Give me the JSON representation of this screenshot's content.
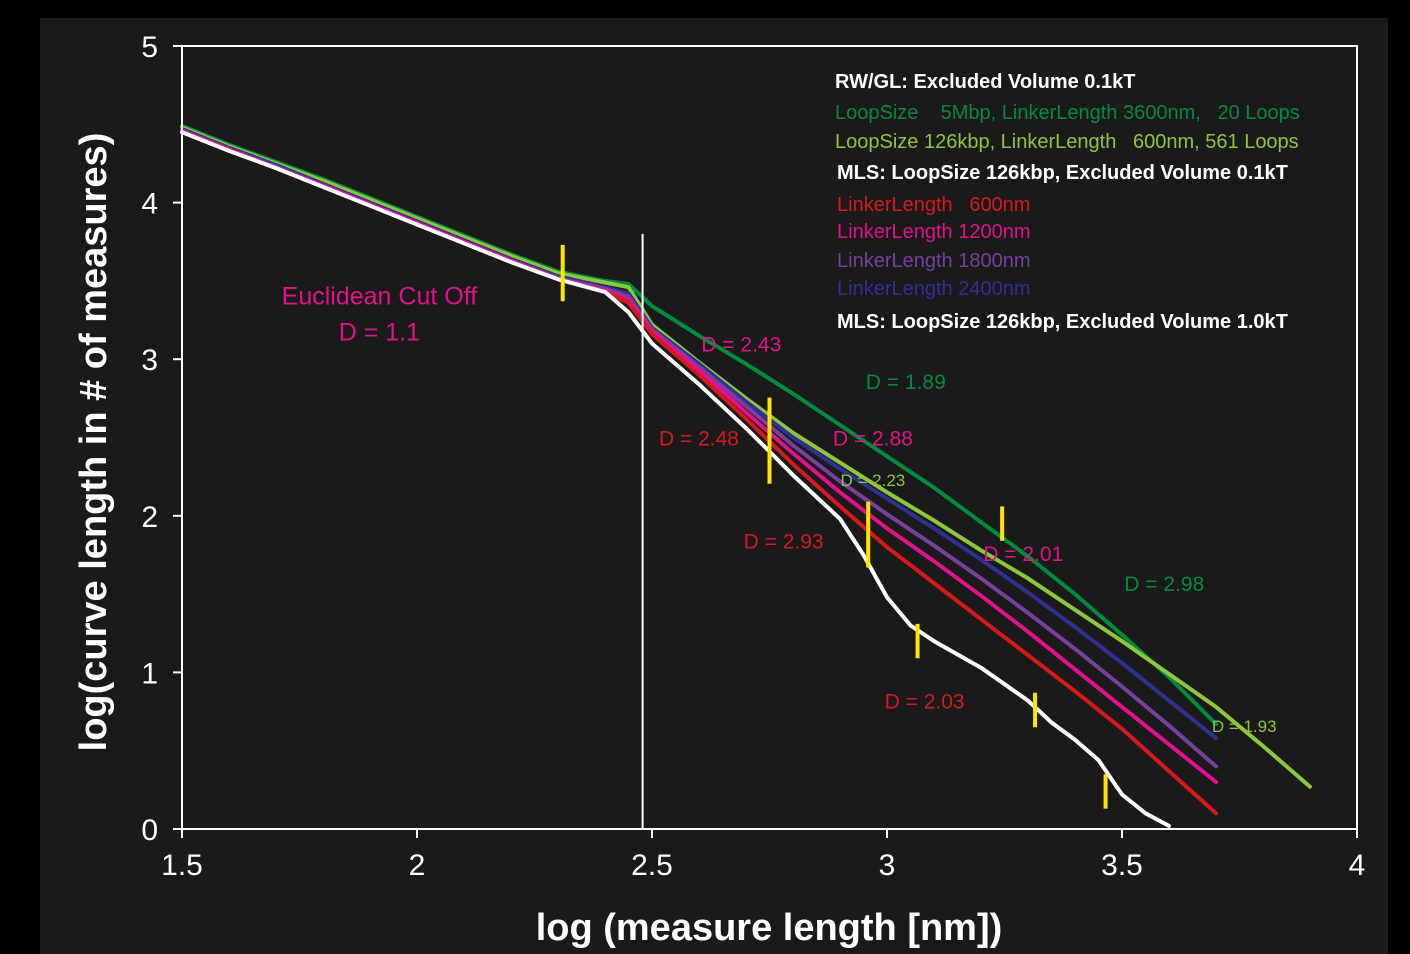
{
  "chart_data": {
    "type": "line",
    "xlabel": "log (measure length [nm])",
    "ylabel": "log(curve length in # of measures)",
    "xlim": [
      1.5,
      4
    ],
    "ylim": [
      0,
      5
    ],
    "xticks": [
      "1.5",
      "2",
      "2.5",
      "3",
      "3.5",
      "4"
    ],
    "yticks": [
      "0",
      "1",
      "2",
      "3",
      "4",
      "5"
    ],
    "grid": false,
    "legend_position": "top-right",
    "legend": {
      "group1_title": "RW/GL: Excluded Volume 0.1kT",
      "group1_items": [
        {
          "text": "LoopSize    5Mbp, LinkerLength 3600nm,   20 Loops",
          "color": "#008c3c"
        },
        {
          "text": "LoopSize 126kbp, LinkerLength   600nm, 561 Loops",
          "color": "#8cc63f"
        }
      ],
      "group2_title": "MLS: LoopSize 126kbp, Excluded Volume 0.1kT",
      "group2_items": [
        {
          "text": "LinkerLength   600nm",
          "color": "#d7191c"
        },
        {
          "text": "LinkerLength 1200nm",
          "color": "#e0128c"
        },
        {
          "text": "LinkerLength 1800nm",
          "color": "#7a3f9d"
        },
        {
          "text": "LinkerLength 2400nm",
          "color": "#2e3192"
        }
      ],
      "group3_title": "MLS: LoopSize 126kbp, Excluded Volume 1.0kT"
    },
    "series": [
      {
        "color": "#008c3c",
        "x": [
          1.5,
          1.6,
          1.7,
          1.8,
          1.9,
          2.0,
          2.1,
          2.2,
          2.3,
          2.4,
          2.45,
          2.5,
          2.6,
          2.7,
          2.8,
          2.9,
          3.0,
          3.1,
          3.2,
          3.3,
          3.4,
          3.5,
          3.6,
          3.7
        ],
        "y": [
          4.49,
          4.37,
          4.26,
          4.15,
          4.03,
          3.91,
          3.79,
          3.67,
          3.56,
          3.5,
          3.48,
          3.34,
          3.15,
          2.97,
          2.78,
          2.58,
          2.38,
          2.18,
          1.96,
          1.74,
          1.5,
          1.24,
          0.97,
          0.67
        ]
      },
      {
        "color": "#8cc63f",
        "x": [
          1.5,
          1.6,
          1.7,
          1.8,
          1.9,
          2.0,
          2.1,
          2.2,
          2.3,
          2.4,
          2.45,
          2.5,
          2.6,
          2.7,
          2.8,
          2.9,
          3.0,
          3.1,
          3.2,
          3.3,
          3.4,
          3.5,
          3.6,
          3.7,
          3.8,
          3.9
        ],
        "y": [
          4.48,
          4.36,
          4.25,
          4.14,
          4.02,
          3.9,
          3.78,
          3.66,
          3.55,
          3.49,
          3.46,
          3.22,
          2.98,
          2.75,
          2.53,
          2.34,
          2.15,
          1.97,
          1.78,
          1.6,
          1.4,
          1.2,
          0.99,
          0.78,
          0.53,
          0.27
        ]
      },
      {
        "color": "#2e3192",
        "x": [
          1.5,
          1.6,
          1.7,
          1.8,
          1.9,
          2.0,
          2.1,
          2.2,
          2.3,
          2.4,
          2.45,
          2.5,
          2.6,
          2.7,
          2.8,
          2.9,
          3.0,
          3.1,
          3.2,
          3.3,
          3.4,
          3.5,
          3.6,
          3.7
        ],
        "y": [
          4.47,
          4.35,
          4.24,
          4.12,
          4.0,
          3.88,
          3.76,
          3.64,
          3.53,
          3.46,
          3.42,
          3.2,
          2.97,
          2.73,
          2.5,
          2.3,
          2.11,
          1.92,
          1.72,
          1.51,
          1.29,
          1.06,
          0.82,
          0.58
        ]
      },
      {
        "color": "#7a3f9d",
        "x": [
          1.5,
          1.6,
          1.7,
          1.8,
          1.9,
          2.0,
          2.1,
          2.2,
          2.3,
          2.4,
          2.45,
          2.5,
          2.6,
          2.7,
          2.8,
          2.9,
          3.0,
          3.1,
          3.2,
          3.3,
          3.4,
          3.5,
          3.6,
          3.7
        ],
        "y": [
          4.46,
          4.34,
          4.23,
          4.11,
          3.99,
          3.87,
          3.75,
          3.63,
          3.52,
          3.45,
          3.4,
          3.19,
          2.95,
          2.7,
          2.45,
          2.22,
          2.01,
          1.81,
          1.6,
          1.38,
          1.15,
          0.91,
          0.66,
          0.4
        ]
      },
      {
        "color": "#e0128c",
        "x": [
          1.5,
          1.6,
          1.7,
          1.8,
          1.9,
          2.0,
          2.1,
          2.2,
          2.3,
          2.4,
          2.45,
          2.5,
          2.6,
          2.7,
          2.8,
          2.9,
          3.0,
          3.1,
          3.2,
          3.3,
          3.4,
          3.5,
          3.6,
          3.7
        ],
        "y": [
          4.46,
          4.34,
          4.22,
          4.11,
          3.99,
          3.87,
          3.75,
          3.63,
          3.51,
          3.44,
          3.38,
          3.18,
          2.93,
          2.66,
          2.4,
          2.15,
          1.92,
          1.71,
          1.49,
          1.26,
          1.02,
          0.78,
          0.54,
          0.3
        ]
      },
      {
        "color": "#d7191c",
        "x": [
          1.5,
          1.6,
          1.7,
          1.8,
          1.9,
          2.0,
          2.1,
          2.2,
          2.3,
          2.4,
          2.45,
          2.5,
          2.6,
          2.7,
          2.8,
          2.9,
          3.0,
          3.1,
          3.2,
          3.3,
          3.4,
          3.5,
          3.6,
          3.7
        ],
        "y": [
          4.45,
          4.33,
          4.22,
          4.1,
          3.98,
          3.86,
          3.74,
          3.62,
          3.51,
          3.43,
          3.36,
          3.16,
          2.9,
          2.62,
          2.33,
          2.06,
          1.8,
          1.57,
          1.34,
          1.11,
          0.88,
          0.64,
          0.37,
          0.1
        ]
      },
      {
        "color": "#ffffff",
        "x": [
          1.5,
          1.6,
          1.7,
          1.8,
          1.9,
          2.0,
          2.1,
          2.2,
          2.3,
          2.4,
          2.45,
          2.5,
          2.6,
          2.7,
          2.8,
          2.9,
          2.95,
          3.0,
          3.05,
          3.1,
          3.2,
          3.3,
          3.35,
          3.4,
          3.45,
          3.5,
          3.55,
          3.6
        ],
        "y": [
          4.45,
          4.33,
          4.22,
          4.1,
          3.98,
          3.86,
          3.74,
          3.62,
          3.51,
          3.43,
          3.3,
          3.1,
          2.84,
          2.56,
          2.26,
          1.98,
          1.75,
          1.48,
          1.3,
          1.2,
          1.03,
          0.82,
          0.68,
          0.57,
          0.44,
          0.22,
          0.1,
          0.02
        ]
      }
    ],
    "cutoff_line": {
      "x": 2.48,
      "y_range": [
        0,
        3.8
      ]
    },
    "markers": [
      {
        "x": 2.31,
        "y": 3.55,
        "height": 0.36
      },
      {
        "x": 2.75,
        "y": 2.48,
        "height": 0.55
      },
      {
        "x": 2.96,
        "y": 1.88,
        "height": 0.42
      },
      {
        "x": 3.065,
        "y": 1.2,
        "height": 0.22
      },
      {
        "x": 3.245,
        "y": 1.95,
        "height": 0.22
      },
      {
        "x": 3.315,
        "y": 0.76,
        "height": 0.22
      },
      {
        "x": 3.465,
        "y": 0.24,
        "height": 0.22
      }
    ],
    "annotations": [
      {
        "text": "Euclidean Cut Off",
        "x": 1.92,
        "y": 3.35,
        "color": "#e0128c",
        "size": "big"
      },
      {
        "text": "D = 1.1",
        "x": 1.92,
        "y": 3.12,
        "color": "#e0128c",
        "size": "big"
      },
      {
        "text": "D = 2.43",
        "x": 2.69,
        "y": 3.05,
        "color": "#e0128c",
        "size": "normal"
      },
      {
        "text": "D = 1.89",
        "x": 3.04,
        "y": 2.81,
        "color": "#008c3c",
        "size": "normal"
      },
      {
        "text": "D = 2.48",
        "x": 2.6,
        "y": 2.45,
        "color": "#d7191c",
        "size": "normal"
      },
      {
        "text": "D = 2.88",
        "x": 2.97,
        "y": 2.45,
        "color": "#e0128c",
        "size": "normal"
      },
      {
        "text": "D = 2.23",
        "x": 2.97,
        "y": 2.19,
        "color": "#8cc63f",
        "size": "small"
      },
      {
        "text": "D = 2.93",
        "x": 2.78,
        "y": 1.79,
        "color": "#d7191c",
        "size": "normal"
      },
      {
        "text": "D = 2.01",
        "x": 3.29,
        "y": 1.71,
        "color": "#e0128c",
        "size": "normal"
      },
      {
        "text": "D = 2.98",
        "x": 3.59,
        "y": 1.52,
        "color": "#008c3c",
        "size": "normal"
      },
      {
        "text": "D = 2.03",
        "x": 3.08,
        "y": 0.77,
        "color": "#d7191c",
        "size": "normal"
      },
      {
        "text": "D = 1.93",
        "x": 3.76,
        "y": 0.62,
        "color": "#8cc63f",
        "size": "small"
      }
    ]
  }
}
